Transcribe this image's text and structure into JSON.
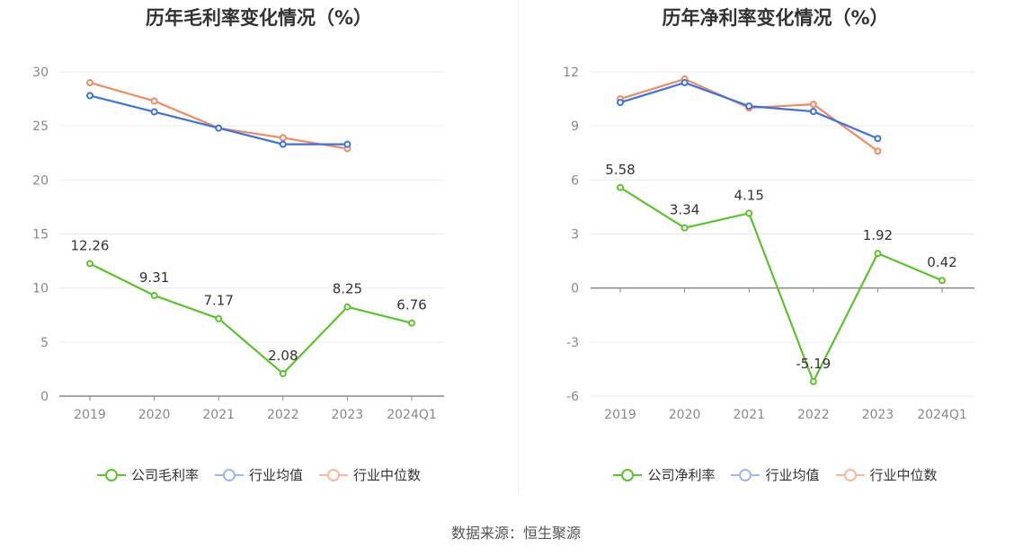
{
  "source": "数据来源：恒生聚源",
  "colors": {
    "company": "#5fc130",
    "avg": "#3c72e0",
    "median": "#f08a62",
    "grid": "#e8eaf2",
    "axis": "#888888",
    "tick": "#888888"
  },
  "chart_data": [
    {
      "type": "line",
      "title": "历年毛利率变化情况（%）",
      "categories": [
        "2019",
        "2020",
        "2021",
        "2022",
        "2023",
        "2024Q1"
      ],
      "ylim": [
        0,
        30
      ],
      "yticks": [
        0,
        5,
        10,
        15,
        20,
        25,
        30
      ],
      "grid": true,
      "legend_position": "bottom",
      "series": [
        {
          "name": "公司毛利率",
          "values": [
            12.26,
            9.31,
            7.17,
            2.08,
            8.25,
            6.76
          ],
          "labels": [
            "12.26",
            "9.31",
            "7.17",
            "2.08",
            "8.25",
            "6.76"
          ]
        },
        {
          "name": "行业均值",
          "values": [
            27.8,
            26.3,
            24.8,
            23.3,
            23.3,
            null
          ]
        },
        {
          "name": "行业中位数",
          "values": [
            29.0,
            27.3,
            24.8,
            23.9,
            22.9,
            null
          ]
        }
      ]
    },
    {
      "type": "line",
      "title": "历年净利率变化情况（%）",
      "categories": [
        "2019",
        "2020",
        "2021",
        "2022",
        "2023",
        "2024Q1"
      ],
      "ylim": [
        -6,
        12
      ],
      "yticks": [
        -6,
        -3,
        0,
        3,
        6,
        9,
        12
      ],
      "grid": true,
      "legend_position": "bottom",
      "series": [
        {
          "name": "公司净利率",
          "values": [
            5.58,
            3.34,
            4.15,
            -5.19,
            1.92,
            0.42
          ],
          "labels": [
            "5.58",
            "3.34",
            "4.15",
            "-5.19",
            "1.92",
            "0.42"
          ]
        },
        {
          "name": "行业均值",
          "values": [
            10.3,
            11.4,
            10.1,
            9.8,
            8.3,
            null
          ]
        },
        {
          "name": "行业中位数",
          "values": [
            10.5,
            11.6,
            10.0,
            10.2,
            7.6,
            null
          ]
        }
      ]
    }
  ]
}
